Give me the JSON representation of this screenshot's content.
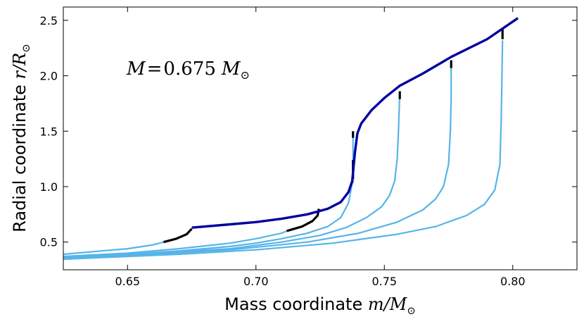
{
  "chart_data": {
    "type": "line",
    "title": "",
    "annotation": {
      "symbol": "M",
      "eq": "=",
      "value": "0.675",
      "unit": "M",
      "sub": "⊙"
    },
    "xlabel": {
      "text": "Mass coordinate ",
      "math": "m/M",
      "sub": "⊙"
    },
    "ylabel": {
      "text": "Radial coordinate ",
      "math": "r/R",
      "sub": "⊙"
    },
    "xlim": [
      0.625,
      0.825
    ],
    "ylim": [
      0.25,
      2.62
    ],
    "xticks": [
      0.65,
      0.7,
      0.75,
      0.8
    ],
    "xtick_labels": [
      "0.65",
      "0.70",
      "0.75",
      "0.80"
    ],
    "yticks": [
      0.5,
      1.0,
      1.5,
      2.0,
      2.5
    ],
    "ytick_labels": [
      "0.5",
      "1.0",
      "1.5",
      "2.0",
      "2.5"
    ],
    "grid": false,
    "colors": {
      "light": "#56b4e9",
      "dark": "#0000a0",
      "black": "#000000"
    },
    "series": [
      {
        "color": "light",
        "width": 2.2,
        "points": [
          [
            0.625,
            0.39
          ],
          [
            0.64,
            0.42
          ],
          [
            0.65,
            0.44
          ],
          [
            0.66,
            0.475
          ],
          [
            0.664,
            0.5
          ]
        ]
      },
      {
        "color": "light",
        "width": 2.2,
        "points": [
          [
            0.625,
            0.37
          ],
          [
            0.65,
            0.4
          ],
          [
            0.67,
            0.44
          ],
          [
            0.69,
            0.49
          ],
          [
            0.7,
            0.53
          ],
          [
            0.71,
            0.58
          ],
          [
            0.712,
            0.6
          ]
        ]
      },
      {
        "color": "light",
        "width": 2.2,
        "points": [
          [
            0.625,
            0.36
          ],
          [
            0.65,
            0.39
          ],
          [
            0.67,
            0.42
          ],
          [
            0.69,
            0.46
          ],
          [
            0.7,
            0.49
          ],
          [
            0.71,
            0.53
          ],
          [
            0.72,
            0.58
          ],
          [
            0.728,
            0.64
          ],
          [
            0.733,
            0.72
          ],
          [
            0.736,
            0.85
          ],
          [
            0.737,
            0.97
          ],
          [
            0.7375,
            1.03
          ]
        ]
      },
      {
        "color": "light",
        "width": 2.2,
        "points": [
          [
            0.625,
            0.355
          ],
          [
            0.66,
            0.4
          ],
          [
            0.69,
            0.44
          ],
          [
            0.71,
            0.5
          ],
          [
            0.725,
            0.56
          ],
          [
            0.735,
            0.63
          ],
          [
            0.743,
            0.72
          ],
          [
            0.749,
            0.82
          ],
          [
            0.752,
            0.92
          ],
          [
            0.754,
            1.05
          ],
          [
            0.755,
            1.25
          ],
          [
            0.7555,
            1.5
          ],
          [
            0.756,
            1.86
          ]
        ]
      },
      {
        "color": "light",
        "width": 2.2,
        "points": [
          [
            0.625,
            0.35
          ],
          [
            0.66,
            0.39
          ],
          [
            0.69,
            0.43
          ],
          [
            0.72,
            0.5
          ],
          [
            0.74,
            0.58
          ],
          [
            0.755,
            0.68
          ],
          [
            0.765,
            0.79
          ],
          [
            0.77,
            0.89
          ],
          [
            0.773,
            1.0
          ],
          [
            0.775,
            1.2
          ],
          [
            0.7757,
            1.5
          ],
          [
            0.776,
            1.8
          ],
          [
            0.776,
            2.09
          ]
        ]
      },
      {
        "color": "light",
        "width": 2.2,
        "points": [
          [
            0.625,
            0.345
          ],
          [
            0.67,
            0.39
          ],
          [
            0.7,
            0.43
          ],
          [
            0.73,
            0.49
          ],
          [
            0.755,
            0.57
          ],
          [
            0.77,
            0.64
          ],
          [
            0.782,
            0.74
          ],
          [
            0.789,
            0.84
          ],
          [
            0.793,
            0.97
          ],
          [
            0.795,
            1.2
          ],
          [
            0.7955,
            1.6
          ],
          [
            0.7958,
            2.0
          ],
          [
            0.796,
            2.32
          ]
        ]
      },
      {
        "color": "light",
        "width": 2.2,
        "points": [
          [
            0.7378,
            1.03
          ],
          [
            0.7378,
            1.5
          ]
        ]
      },
      {
        "color": "black",
        "width": 3.2,
        "points": [
          [
            0.664,
            0.5
          ],
          [
            0.669,
            0.53
          ],
          [
            0.673,
            0.57
          ],
          [
            0.675,
            0.62
          ]
        ]
      },
      {
        "color": "black",
        "width": 3.2,
        "points": [
          [
            0.712,
            0.6
          ],
          [
            0.718,
            0.64
          ],
          [
            0.722,
            0.69
          ],
          [
            0.724,
            0.74
          ],
          [
            0.7245,
            0.8
          ]
        ]
      },
      {
        "color": "black",
        "width": 3.2,
        "points": [
          [
            0.7378,
            1.07
          ],
          [
            0.7378,
            1.24
          ]
        ]
      },
      {
        "color": "black",
        "width": 3.2,
        "points": [
          [
            0.7378,
            1.44
          ],
          [
            0.7378,
            1.5
          ]
        ]
      },
      {
        "color": "black",
        "width": 3.2,
        "points": [
          [
            0.756,
            1.79
          ],
          [
            0.756,
            1.86
          ]
        ]
      },
      {
        "color": "black",
        "width": 3.2,
        "points": [
          [
            0.776,
            2.07
          ],
          [
            0.776,
            2.14
          ]
        ]
      },
      {
        "color": "black",
        "width": 3.2,
        "points": [
          [
            0.796,
            2.33
          ],
          [
            0.796,
            2.43
          ]
        ]
      },
      {
        "color": "dark",
        "width": 3.4,
        "points": [
          [
            0.675,
            0.63
          ],
          [
            0.69,
            0.66
          ],
          [
            0.7,
            0.68
          ],
          [
            0.71,
            0.71
          ],
          [
            0.72,
            0.75
          ],
          [
            0.728,
            0.8
          ],
          [
            0.733,
            0.86
          ],
          [
            0.736,
            0.95
          ],
          [
            0.7375,
            1.05
          ],
          [
            0.7385,
            1.3
          ],
          [
            0.7395,
            1.48
          ],
          [
            0.741,
            1.57
          ],
          [
            0.745,
            1.69
          ],
          [
            0.75,
            1.8
          ],
          [
            0.756,
            1.91
          ],
          [
            0.765,
            2.02
          ],
          [
            0.776,
            2.17
          ],
          [
            0.79,
            2.33
          ],
          [
            0.802,
            2.52
          ]
        ]
      }
    ]
  }
}
